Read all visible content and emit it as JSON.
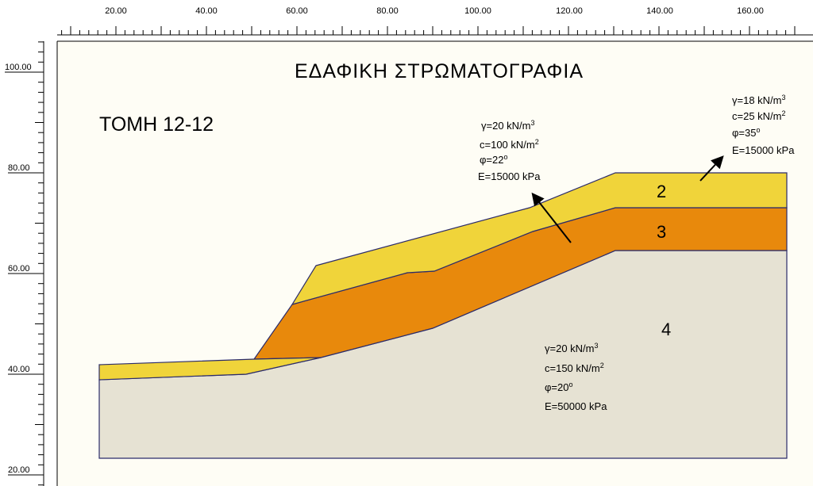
{
  "title": "ΕΔΑΦΙΚΗ ΣΤΡΩΜΑΤΟΓΡΑΦΙΑ",
  "section_label": "ΤΟΜΗ 12-12",
  "axes": {
    "x_ticks": [
      "20.00",
      "40.00",
      "60.00",
      "80.00",
      "100.00",
      "120.00",
      "140.00",
      "160.00"
    ],
    "y_ticks": [
      "100.00",
      "80.00",
      "60.00",
      "40.00",
      "20.00"
    ]
  },
  "layers": [
    {
      "id": "2",
      "label": "2",
      "color": "#f0d43a"
    },
    {
      "id": "3",
      "label": "3",
      "color": "#e8890c"
    },
    {
      "id": "4",
      "label": "4",
      "color": "#e6e2d3"
    }
  ],
  "properties": {
    "layer2": [
      "γ=18 kN/m",
      "c=25 kN/m",
      "φ=35",
      "E=15000 kPa"
    ],
    "layer3": [
      "γ=20 kN/m",
      "c=100 kN/m",
      "φ=22",
      "E=15000 kPa"
    ],
    "layer4": [
      "γ=20 kN/m",
      "c=150 kN/m",
      "φ=20",
      "E=50000 kPa"
    ]
  },
  "colors": {
    "canvas_bg": "#fefdf5",
    "outline": "#2b2b6a"
  }
}
